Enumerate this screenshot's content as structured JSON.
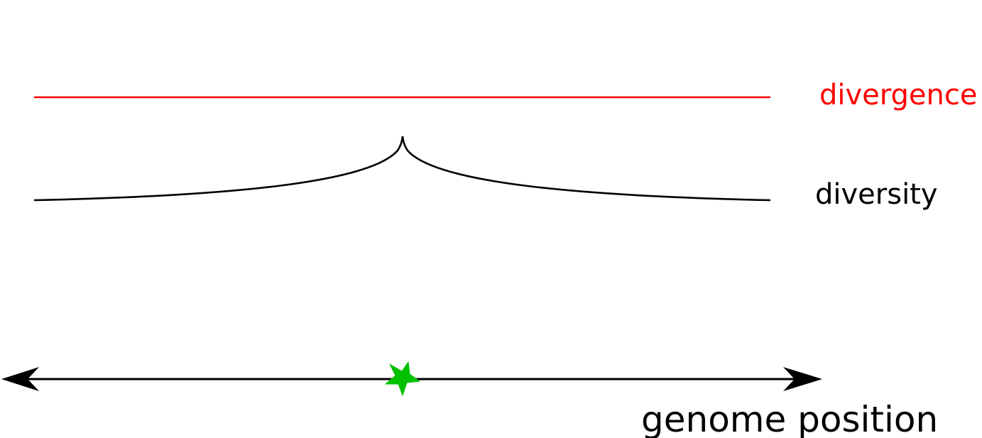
{
  "labels": {
    "divergence": "divergence",
    "diversity": "diversity",
    "axis": "genome position"
  },
  "colors": {
    "divergence": "#ff0000",
    "diversity": "#000000",
    "axis": "#000000",
    "marker": "#00c000"
  },
  "marker": {
    "shape": "star-icon"
  }
}
